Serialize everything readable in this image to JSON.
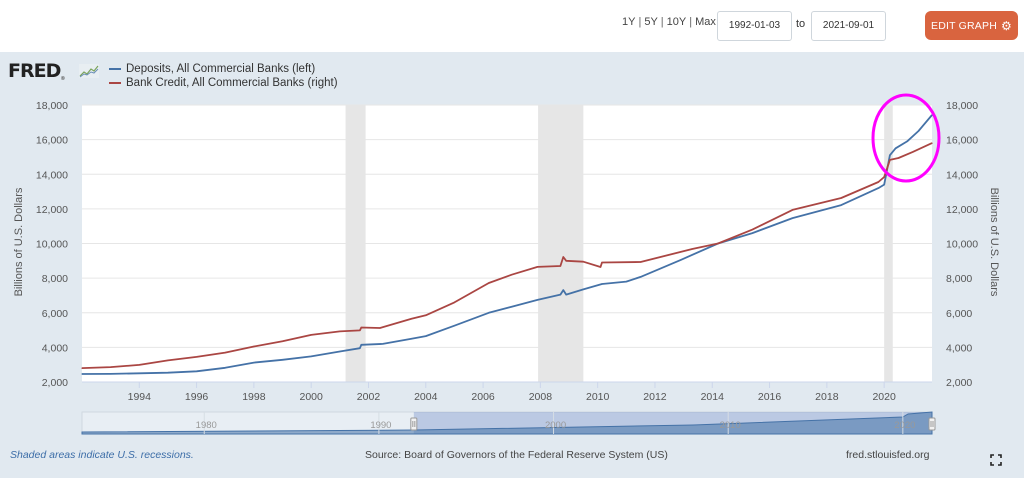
{
  "toolbar": {
    "range_links": [
      "1Y",
      "5Y",
      "10Y",
      "Max"
    ],
    "start_date": "1992-01-03",
    "to_label": "to",
    "end_date": "2021-09-01",
    "edit_button": "EDIT GRAPH",
    "edit_icon": "gear-icon"
  },
  "logo": {
    "text": "FRED",
    "icon": "line-graph-icon"
  },
  "footer": {
    "note": "Shaded areas indicate U.S. recessions.",
    "source": "Source: Board of Governors of the Federal Reserve System (US)",
    "site": "fred.stlouisfed.org",
    "fullscreen_icon": "expand-icon"
  },
  "chart_data": {
    "type": "line",
    "title": "",
    "xlabel": "",
    "ylabel_left": "Billions of U.S. Dollars",
    "ylabel_right": "Billions of U.S. Dollars",
    "xlim": [
      1992.0,
      2021.67
    ],
    "ylim_left": [
      2000,
      18000
    ],
    "ylim_right": [
      2000,
      18000
    ],
    "y_ticks": [
      2000,
      4000,
      6000,
      8000,
      10000,
      12000,
      14000,
      16000,
      18000
    ],
    "y_tick_labels": [
      "2,000",
      "4,000",
      "6,000",
      "8,000",
      "10,000",
      "12,000",
      "14,000",
      "16,000",
      "18,000"
    ],
    "x_ticks": [
      1994,
      1996,
      1998,
      2000,
      2002,
      2004,
      2006,
      2008,
      2010,
      2012,
      2014,
      2016,
      2018,
      2020
    ],
    "x_tick_labels": [
      "1994",
      "1996",
      "1998",
      "2000",
      "2002",
      "2004",
      "2006",
      "2008",
      "2010",
      "2012",
      "2014",
      "2016",
      "2018",
      "2020"
    ],
    "grid": true,
    "legend_position": "top-left",
    "recessions": [
      [
        2001.2,
        2001.9
      ],
      [
        2007.92,
        2009.5
      ],
      [
        2020.0,
        2020.3
      ]
    ],
    "series": [
      {
        "name": "Deposits, All Commercial Banks (left)",
        "color": "#4572a7",
        "axis": "left",
        "x": [
          1992.0,
          1993.0,
          1994.0,
          1995.0,
          1996.0,
          1997.0,
          1998.0,
          1999.0,
          2000.0,
          2001.0,
          2001.7,
          2001.75,
          2002.5,
          2003.5,
          2004.0,
          2005.0,
          2006.2,
          2007.0,
          2007.9,
          2008.7,
          2008.8,
          2008.9,
          2009.5,
          2010.15,
          2011.0,
          2011.5,
          2012.9,
          2014.2,
          2015.4,
          2016.8,
          2018.5,
          2019.8,
          2020.0,
          2020.2,
          2020.4,
          2020.8,
          2021.2,
          2021.67
        ],
        "values": [
          2460,
          2470,
          2500,
          2540,
          2620,
          2820,
          3120,
          3280,
          3480,
          3760,
          3950,
          4150,
          4200,
          4500,
          4650,
          5250,
          6000,
          6350,
          6740,
          7050,
          7310,
          7050,
          7350,
          7660,
          7800,
          8070,
          9050,
          10000,
          10600,
          11470,
          12220,
          13200,
          13400,
          15100,
          15500,
          15900,
          16500,
          17420
        ]
      },
      {
        "name": "Bank Credit, All Commercial Banks (right)",
        "color": "#aa4643",
        "axis": "right",
        "x": [
          1992.0,
          1993.0,
          1994.0,
          1995.0,
          1996.0,
          1997.0,
          1998.0,
          1999.0,
          2000.0,
          2001.0,
          2001.7,
          2001.75,
          2002.4,
          2003.5,
          2004.0,
          2005.0,
          2006.2,
          2007.0,
          2007.9,
          2008.7,
          2008.8,
          2008.9,
          2009.5,
          2010.1,
          2010.15,
          2011.5,
          2013.3,
          2014.2,
          2015.4,
          2016.8,
          2018.5,
          2019.8,
          2020.0,
          2020.2,
          2020.5,
          2021.0,
          2021.67
        ],
        "values": [
          2800,
          2860,
          2990,
          3250,
          3450,
          3700,
          4050,
          4350,
          4720,
          4920,
          4980,
          5150,
          5120,
          5650,
          5850,
          6600,
          7720,
          8200,
          8650,
          8700,
          9220,
          9000,
          8950,
          8640,
          8900,
          8930,
          9680,
          10000,
          10800,
          11940,
          12630,
          13550,
          13840,
          14830,
          14940,
          15290,
          15800
        ]
      }
    ],
    "navigator": {
      "tick_labels": [
        "1980",
        "1990",
        "2000",
        "2010",
        "2020"
      ],
      "selected_range": [
        "1992-01-03",
        "2021-09-01"
      ]
    },
    "annotation": {
      "type": "ellipse",
      "color": "#ff00ff",
      "description": "highlight around 2020-2021 surge"
    }
  }
}
